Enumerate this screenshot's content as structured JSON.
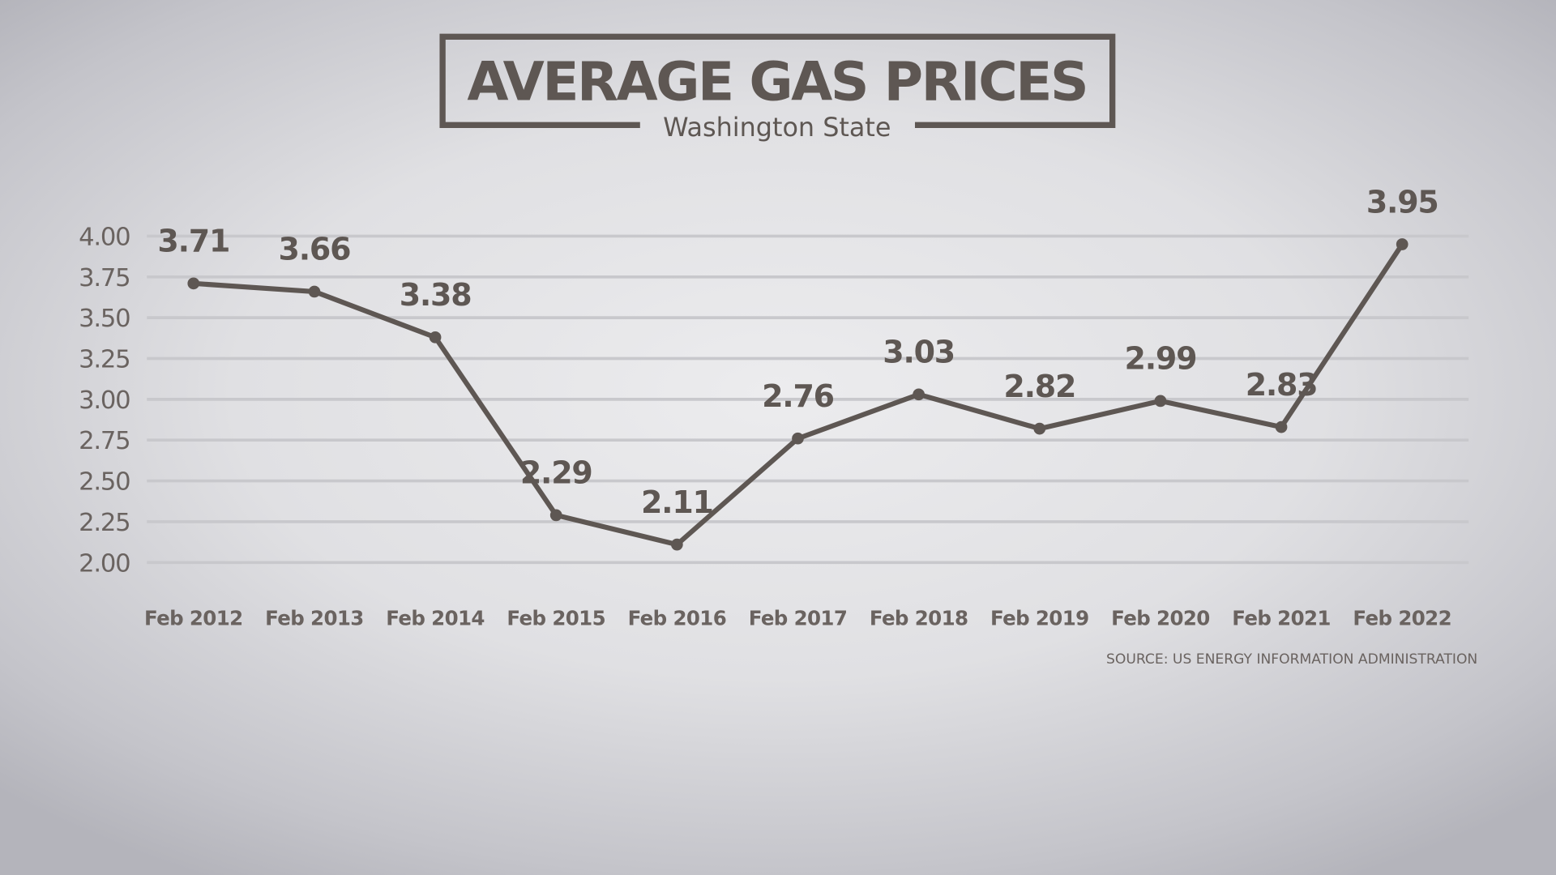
{
  "chart_data": {
    "type": "line",
    "title": "AVERAGE GAS PRICES",
    "subtitle": "Washington State",
    "categories": [
      "Feb 2012",
      "Feb 2013",
      "Feb 2014",
      "Feb 2015",
      "Feb 2016",
      "Feb 2017",
      "Feb 2018",
      "Feb 2019",
      "Feb 2020",
      "Feb 2021",
      "Feb 2022"
    ],
    "values": [
      3.71,
      3.66,
      3.38,
      2.29,
      2.11,
      2.76,
      3.03,
      2.82,
      2.99,
      2.83,
      3.95
    ],
    "data_labels": [
      "3.71",
      "3.66",
      "3.38",
      "2.29",
      "2.11",
      "2.76",
      "3.03",
      "2.82",
      "2.99",
      "2.83",
      "3.95"
    ],
    "yticks": [
      "4.00",
      "3.75",
      "3.50",
      "3.25",
      "3.00",
      "2.75",
      "2.50",
      "2.25",
      "2.00"
    ],
    "ylim": [
      2.0,
      4.0
    ],
    "xlabel": "",
    "ylabel": "",
    "grid": true,
    "legend": "none",
    "source": "SOURCE: US ENERGY INFORMATION ADMINISTRATION",
    "colors": {
      "line": "#5e5753",
      "grid": "#c8c8cc",
      "text": "#5e5753"
    }
  }
}
